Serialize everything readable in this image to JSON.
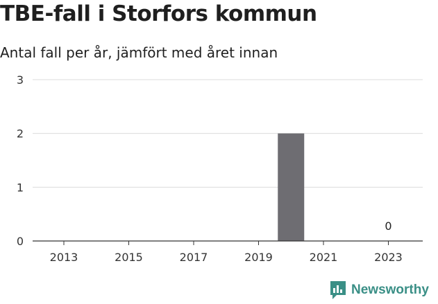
{
  "title": "TBE-fall i Storfors kommun",
  "subtitle": "Antal fall per år, jämfört med året innan",
  "brand": {
    "name": "Newsworthy",
    "icon": "newsworthy-logo-icon",
    "color": "#3a8f86"
  },
  "chart_data": {
    "type": "bar",
    "title": "TBE-fall i Storfors kommun",
    "subtitle": "Antal fall per år, jämfört med året innan",
    "xlabel": "",
    "ylabel": "",
    "categories": [
      "2013",
      "2014",
      "2015",
      "2016",
      "2017",
      "2018",
      "2019",
      "2020",
      "2021",
      "2022",
      "2023"
    ],
    "x_tick_labels": [
      "2013",
      "2015",
      "2017",
      "2019",
      "2021",
      "2023"
    ],
    "y_ticks": [
      0,
      1,
      2,
      3
    ],
    "ylim": [
      0,
      3
    ],
    "series": [
      {
        "values": [
          0,
          0,
          0,
          0,
          0,
          0,
          0,
          2,
          0,
          0,
          0
        ],
        "color": "#6e6d72"
      }
    ],
    "data_labels": [
      {
        "category": "2023",
        "text": "0"
      }
    ],
    "grid": true,
    "legend": "none"
  }
}
